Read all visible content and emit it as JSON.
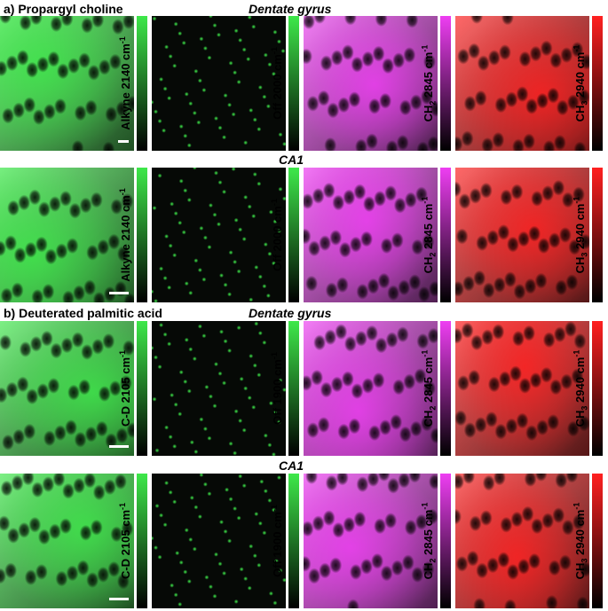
{
  "sections": [
    {
      "label": "a)",
      "probe": "Propargyl choline",
      "rows": [
        {
          "region": "Dentate gyrus",
          "channels": [
            {
              "label": "Alkyne 2140 cm",
              "color": "#3ee84a"
            },
            {
              "label": "Off 2000 cm",
              "color": "#3ee84a"
            },
            {
              "label": "CH2 2845 cm",
              "color": "#ee3ef2"
            },
            {
              "label": "CH3 2940 cm",
              "color": "#ff2020"
            }
          ]
        },
        {
          "region": "CA1",
          "channels": [
            {
              "label": "Alkyne 2140 cm",
              "color": "#3ee84a"
            },
            {
              "label": "Off 2000 cm",
              "color": "#3ee84a"
            },
            {
              "label": "CH2 2845 cm",
              "color": "#ee3ef2"
            },
            {
              "label": "CH3 2940 cm",
              "color": "#ff2020"
            }
          ]
        }
      ]
    },
    {
      "label": "b)",
      "probe": "Deuterated palmitic acid",
      "rows": [
        {
          "region": "Dentate gyrus",
          "channels": [
            {
              "label": "C-D 2105 cm",
              "color": "#3ee84a"
            },
            {
              "label": "Off 1900 cm",
              "color": "#3ee84a"
            },
            {
              "label": "CH2 2845 cm",
              "color": "#ee3ef2"
            },
            {
              "label": "CH3 2940 cm",
              "color": "#ff2020"
            }
          ]
        },
        {
          "region": "CA1",
          "channels": [
            {
              "label": "C-D 2105 cm",
              "color": "#3ee84a"
            },
            {
              "label": "Off 1900 cm",
              "color": "#3ee84a"
            },
            {
              "label": "CH2 2845 cm",
              "color": "#ee3ef2"
            },
            {
              "label": "CH3 2940 cm",
              "color": "#ff2020"
            }
          ]
        }
      ]
    }
  ],
  "unit_superscript": "-1",
  "subscript_2": "2",
  "subscript_3": "3"
}
